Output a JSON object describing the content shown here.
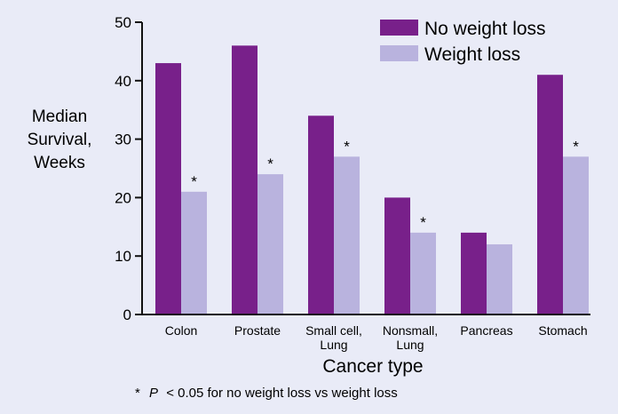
{
  "chart_data": {
    "type": "bar",
    "ylabel": [
      "Median",
      "Survival,",
      "Weeks"
    ],
    "xlabel": "Cancer type",
    "ylim": [
      0,
      50
    ],
    "yticks": [
      0,
      10,
      20,
      30,
      40,
      50
    ],
    "grid": false,
    "legend_position": "top-right",
    "categories": [
      [
        "Colon"
      ],
      [
        "Prostate"
      ],
      [
        "Small cell,",
        "Lung"
      ],
      [
        "Nonsmall,",
        "Lung"
      ],
      [
        "Pancreas"
      ],
      [
        "Stomach"
      ]
    ],
    "series": [
      {
        "name": "No weight loss",
        "color": "#78208a",
        "values": [
          43,
          46,
          34,
          20,
          14,
          41
        ]
      },
      {
        "name": "Weight loss",
        "color": "#b9b3de",
        "values": [
          21,
          24,
          27,
          14,
          12,
          27
        ]
      }
    ],
    "significance_marker": "*",
    "significant": [
      true,
      true,
      true,
      true,
      false,
      true
    ],
    "footnote": {
      "marker": "*",
      "p": "P",
      "text": "< 0.05 for no weight loss vs weight loss"
    }
  }
}
